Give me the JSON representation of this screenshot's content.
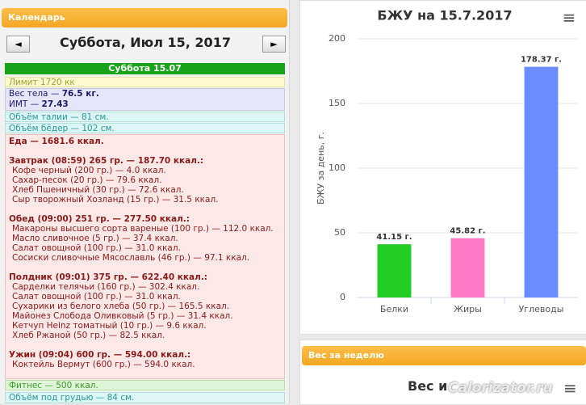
{
  "calendar": {
    "header": "Календарь",
    "prev": "◄",
    "next": "►",
    "date_title": "Суббота, Июл 15, 2017",
    "day_header": "Суббота 15.07",
    "limit": "Лимит 1720 кк",
    "weight": {
      "label": "Вес тела —",
      "value": "76.5 кг."
    },
    "bmi": {
      "label": "ИМТ —",
      "value": "27.43"
    },
    "waist": "Объём талии — 81 см.",
    "hips": "Объём бёдер — 102 см.",
    "food": "Еда — 1681.6 ккал.",
    "meals": [
      {
        "title": "Завтрак (08:59) 265 гр. — 187.70 ккал.:",
        "items": [
          "Кофе черный (200 гр.) — 4.0 ккал.",
          "Сахар-песок (20 гр.) — 79.6 ккал.",
          "Хлеб Пшеничный (30 гр.) — 72.6 ккал.",
          "Сыр творожный Хозланд (15 гр.) — 31.5 ккал."
        ]
      },
      {
        "title": "Обед (09:00) 251 гр. — 277.50 ккал.:",
        "items": [
          "Макароны высшего сорта вареные (100 гр.) — 112.0 ккал.",
          "Масло сливочное (5 гр.) — 37.4 ккал.",
          "Салат овощной (100 гр.) — 31.0 ккал.",
          "Сосиски сливочные Мясославль (46 гр.) — 97.1 ккал."
        ]
      },
      {
        "title": "Полдник (09:01) 375 гр. — 622.40 ккал.:",
        "items": [
          "Сарделки телячьи (160 гр.) — 302.4 ккал.",
          "Салат овощной (100 гр.) — 31.0 ккал.",
          "Сухарики из белого хлеба (50 гр.) — 165.5 ккал.",
          "Майонез Слобода Оливковый (5 гр.) — 31.4 ккал.",
          "Кетчуп Heinz томатный (10 гр.) — 9.6 ккал.",
          "Хлеб Ржаной (50 гр.) — 82.5 ккал."
        ]
      },
      {
        "title": "Ужин (09:04) 600 гр. — 594.00 ккал.:",
        "items": [
          "Коктейль Вермут (600 гр.) — 594.0 ккал."
        ]
      }
    ],
    "fitness": "Фитнес — 500 ккал.",
    "underbust": "Объём под грудью — 84 см."
  },
  "chart_data": {
    "type": "bar",
    "title": "БЖУ на 15.7.2017",
    "y_label": "БЖУ за день, г.",
    "categories": [
      "Белки",
      "Жиры",
      "Углеводы"
    ],
    "values": [
      41.15,
      45.82,
      178.37
    ],
    "value_labels": [
      "41.15 г.",
      "45.82 г.",
      "178.37 г."
    ],
    "colors": [
      "#22cc22",
      "#ff7ac4",
      "#6b8cff"
    ],
    "ylim": [
      0,
      200
    ],
    "yticks": [
      0,
      50,
      100,
      150,
      200
    ],
    "grid": true,
    "menu": "≡"
  },
  "weekly": {
    "header": "Вес за неделю",
    "title": "Вес и",
    "watermark": "Calorizator.ru",
    "menu": "≡"
  }
}
